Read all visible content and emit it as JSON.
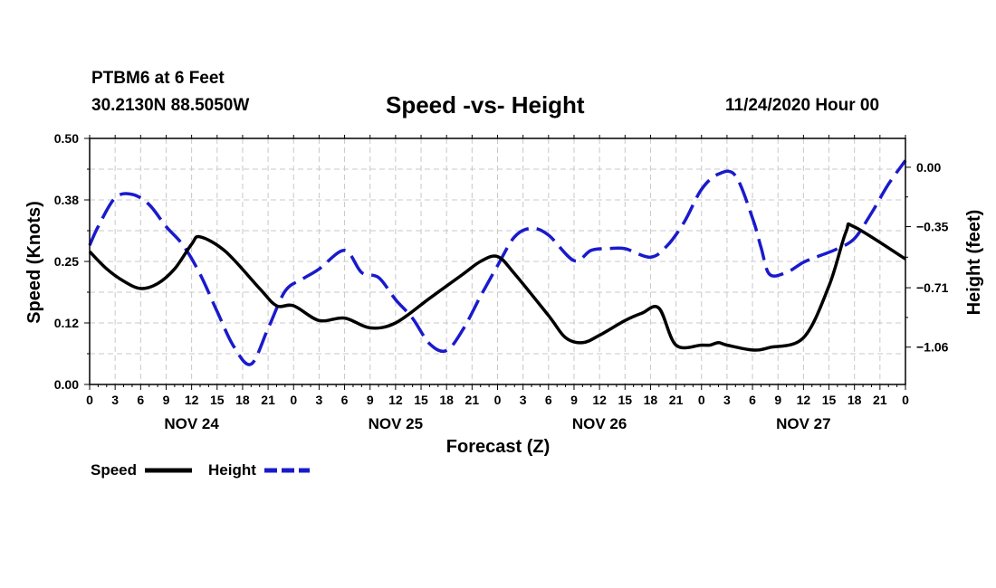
{
  "header": {
    "station": "PTBM6 at 6 Feet",
    "coords": "30.2130N 88.5050W",
    "title": "Speed -vs- Height",
    "date": "11/24/2020 Hour 00"
  },
  "chart_data": {
    "type": "line",
    "title": "Speed -vs- Height",
    "xlabel": "Forecast (Z)",
    "ylabel": "Speed (Knots)",
    "y2label": "Height (feet)",
    "x_range": [
      0,
      96
    ],
    "x_ticks": [
      0,
      3,
      6,
      9,
      12,
      15,
      18,
      21,
      24,
      27,
      30,
      33,
      36,
      39,
      42,
      45,
      48,
      51,
      54,
      57,
      60,
      63,
      66,
      69,
      72,
      75,
      78,
      81,
      84,
      87,
      90,
      93,
      96
    ],
    "x_tick_labels": [
      "0",
      "3",
      "6",
      "9",
      "12",
      "15",
      "18",
      "21",
      "0",
      "3",
      "6",
      "9",
      "12",
      "15",
      "18",
      "21",
      "0",
      "3",
      "6",
      "9",
      "12",
      "15",
      "18",
      "21",
      "0",
      "3",
      "6",
      "9",
      "12",
      "15",
      "18",
      "21",
      "0"
    ],
    "day_labels": [
      {
        "hour": 12,
        "label": "NOV 24"
      },
      {
        "hour": 36,
        "label": "NOV 25"
      },
      {
        "hour": 60,
        "label": "NOV 26"
      },
      {
        "hour": 84,
        "label": "NOV 27"
      }
    ],
    "ylim": [
      0,
      0.5
    ],
    "y_ticks": [
      0.0,
      0.125,
      0.25,
      0.375,
      0.5
    ],
    "y_tick_labels": [
      "0.00",
      "0.12",
      "0.25",
      "0.38",
      "0.50"
    ],
    "y2lim": [
      -1.28,
      0.17
    ],
    "y2_ticks": [
      -1.06,
      -0.71,
      -0.35,
      0.0
    ],
    "y2_tick_labels": [
      "−1.06",
      "−0.71",
      "−0.35",
      "0.00"
    ],
    "grid": true,
    "legend_position": "bottom-left",
    "series": [
      {
        "name": "Speed",
        "axis": "left",
        "color": "#000000",
        "style": "solid",
        "x": [
          0,
          2,
          4,
          6,
          8,
          10,
          12,
          13,
          16,
          20,
          22,
          24,
          27,
          30,
          33,
          36,
          40,
          44,
          46,
          48,
          50,
          54,
          56,
          58,
          60,
          63,
          65,
          67,
          69,
          72,
          73,
          74,
          75,
          78,
          80,
          84,
          87,
          89,
          90,
          96
        ],
        "values": [
          0.27,
          0.235,
          0.21,
          0.195,
          0.205,
          0.235,
          0.285,
          0.3,
          0.27,
          0.195,
          0.16,
          0.16,
          0.13,
          0.135,
          0.115,
          0.125,
          0.175,
          0.225,
          0.25,
          0.26,
          0.225,
          0.14,
          0.095,
          0.085,
          0.1,
          0.13,
          0.145,
          0.155,
          0.08,
          0.08,
          0.08,
          0.085,
          0.08,
          0.07,
          0.075,
          0.095,
          0.2,
          0.31,
          0.32,
          0.255
        ]
      },
      {
        "name": "Height",
        "axis": "right",
        "color": "#1a1acc",
        "style": "dashed",
        "x": [
          0,
          1,
          3,
          5,
          7,
          9,
          11,
          13,
          15,
          17,
          19,
          21,
          23,
          25,
          27,
          30,
          32,
          34,
          36,
          38,
          40,
          42,
          44,
          46,
          48,
          50,
          52,
          54,
          57,
          59,
          61,
          63,
          66,
          68,
          70,
          72,
          74,
          76,
          78,
          79,
          80,
          82,
          84,
          86,
          88,
          90,
          92,
          94,
          96
        ],
        "values": [
          -0.46,
          -0.35,
          -0.18,
          -0.16,
          -0.22,
          -0.35,
          -0.46,
          -0.63,
          -0.85,
          -1.06,
          -1.16,
          -0.95,
          -0.73,
          -0.66,
          -0.6,
          -0.49,
          -0.62,
          -0.65,
          -0.78,
          -0.89,
          -1.04,
          -1.08,
          -0.95,
          -0.76,
          -0.58,
          -0.41,
          -0.36,
          -0.4,
          -0.55,
          -0.49,
          -0.48,
          -0.48,
          -0.53,
          -0.46,
          -0.32,
          -0.13,
          -0.04,
          -0.05,
          -0.3,
          -0.47,
          -0.63,
          -0.62,
          -0.56,
          -0.52,
          -0.48,
          -0.42,
          -0.27,
          -0.1,
          0.04
        ]
      }
    ]
  }
}
